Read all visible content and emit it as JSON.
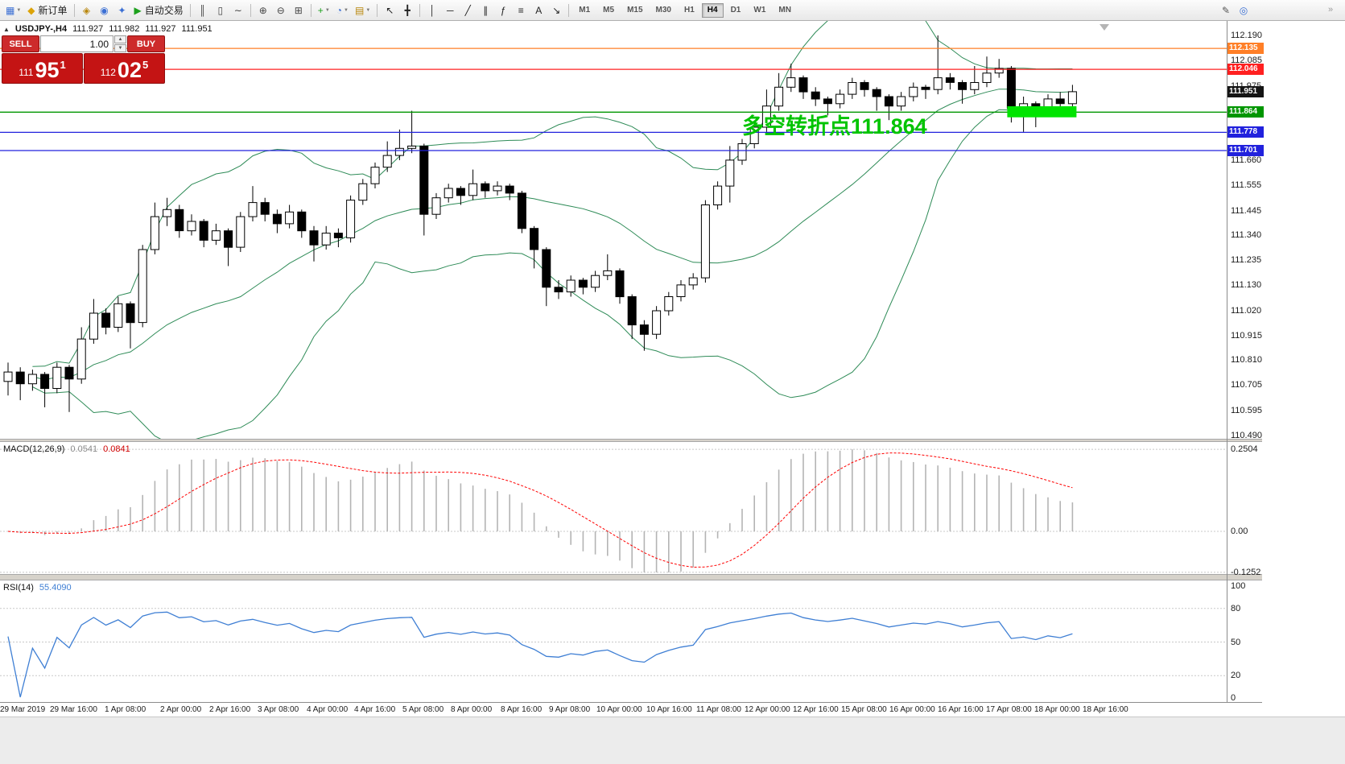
{
  "colors": {
    "band_green": "#2e8b57",
    "macd_bar": "#b4b4b4",
    "macd_signal": "#ff0000",
    "rsi_line": "#3f7fd4",
    "annotation_green": "#00c400",
    "trade_red": "#c41414",
    "current_badge": "#141414"
  },
  "toolbar": {
    "active_timeframe": "H4",
    "items": [
      {
        "type": "icon",
        "name": "new-chart",
        "glyph": "▦",
        "color": "#3b6fd4",
        "dropdown": true
      },
      {
        "type": "labeled",
        "name": "new-order",
        "glyph": "◆",
        "color": "#dca308",
        "label": "新订单"
      },
      {
        "type": "sep"
      },
      {
        "type": "icon",
        "name": "profiles",
        "glyph": "◈",
        "color": "#b8860b"
      },
      {
        "type": "icon",
        "name": "market-watch",
        "glyph": "◉",
        "color": "#3b6fd4"
      },
      {
        "type": "icon",
        "name": "navigator",
        "glyph": "✦",
        "color": "#3b6fd4"
      },
      {
        "type": "labeled",
        "name": "autotrading",
        "glyph": "▶",
        "color": "#1da11d",
        "label": "自动交易"
      },
      {
        "type": "sep"
      },
      {
        "type": "icon",
        "name": "bar-chart-mode",
        "glyph": "║",
        "color": "#444444"
      },
      {
        "type": "icon",
        "name": "candlestick-mode",
        "glyph": "▯",
        "color": "#444444"
      },
      {
        "type": "icon",
        "name": "line-chart-mode",
        "glyph": "∼",
        "color": "#444444"
      },
      {
        "type": "sep"
      },
      {
        "type": "icon",
        "name": "zoom-in",
        "glyph": "⊕",
        "color": "#444444"
      },
      {
        "type": "icon",
        "name": "zoom-out",
        "glyph": "⊖",
        "color": "#444444"
      },
      {
        "type": "icon",
        "name": "tile-windows",
        "glyph": "⊞",
        "color": "#444444"
      },
      {
        "type": "sep"
      },
      {
        "type": "icon",
        "name": "indicators",
        "glyph": "+",
        "color": "#1da11d",
        "dropdown": true
      },
      {
        "type": "icon",
        "name": "periods",
        "glyph": "◔",
        "color": "#3b6fd4",
        "dropdown": true
      },
      {
        "type": "icon",
        "name": "templates",
        "glyph": "▤",
        "color": "#b8860b",
        "dropdown": true
      },
      {
        "type": "sep"
      },
      {
        "type": "icon",
        "name": "cursor",
        "glyph": "↖",
        "color": "#222222"
      },
      {
        "type": "icon",
        "name": "crosshair",
        "glyph": "╋",
        "color": "#222222"
      },
      {
        "type": "sep"
      },
      {
        "type": "icon",
        "name": "vertical-line",
        "glyph": "│",
        "color": "#222222"
      },
      {
        "type": "icon",
        "name": "horizontal-line",
        "glyph": "─",
        "color": "#222222"
      },
      {
        "type": "icon",
        "name": "trendline",
        "glyph": "╱",
        "color": "#222222"
      },
      {
        "type": "icon",
        "name": "equidistant-channel",
        "glyph": "∥",
        "color": "#222222"
      },
      {
        "type": "icon",
        "name": "fibonacci",
        "glyph": "ƒ",
        "color": "#222222"
      },
      {
        "type": "icon",
        "name": "objects-list",
        "glyph": "≡",
        "color": "#222222"
      },
      {
        "type": "icon",
        "name": "text-label",
        "glyph": "A",
        "color": "#222222"
      },
      {
        "type": "icon",
        "name": "arrow-objects",
        "glyph": "↘",
        "color": "#222222"
      },
      {
        "type": "sep"
      },
      {
        "type": "tf",
        "label": "M1"
      },
      {
        "type": "tf",
        "label": "M5"
      },
      {
        "type": "tf",
        "label": "M15"
      },
      {
        "type": "tf",
        "label": "M30"
      },
      {
        "type": "tf",
        "label": "H1"
      },
      {
        "type": "tf",
        "label": "H4"
      },
      {
        "type": "tf",
        "label": "D1"
      },
      {
        "type": "tf",
        "label": "W1"
      },
      {
        "type": "tf",
        "label": "MN"
      }
    ],
    "right_items": [
      {
        "name": "quick-edit",
        "glyph": "✎",
        "color": "#555555"
      },
      {
        "name": "quick-search",
        "glyph": "◎",
        "color": "#3b6fd4"
      }
    ],
    "overflow_glyph": "»"
  },
  "quote_bar": {
    "collapse_glyph": "▲",
    "symbol": "USDJPY-,H4",
    "open": "111.927",
    "high": "111.982",
    "low": "111.927",
    "close": "111.951"
  },
  "trade_panel": {
    "sell_label": "SELL",
    "buy_label": "BUY",
    "volume": "1.00",
    "spin_up": "▲",
    "spin_down": "▼",
    "sell_price": {
      "prefix": "111",
      "big": "95",
      "sup": "1"
    },
    "buy_price": {
      "prefix": "112",
      "big": "02",
      "sup": "5"
    }
  },
  "chart_data": [
    {
      "type": "candlestick",
      "title": "USDJPY-,H4",
      "ylim": [
        110.49,
        112.245
      ],
      "current_price": 111.951,
      "ohlc": [
        [
          110.72,
          110.8,
          110.66,
          110.76
        ],
        [
          110.76,
          110.78,
          110.64,
          110.71
        ],
        [
          110.71,
          110.77,
          110.68,
          110.75
        ],
        [
          110.75,
          110.76,
          110.61,
          110.69
        ],
        [
          110.69,
          110.8,
          110.67,
          110.78
        ],
        [
          110.78,
          110.79,
          110.59,
          110.73
        ],
        [
          110.73,
          110.95,
          110.71,
          110.9
        ],
        [
          110.9,
          111.07,
          110.88,
          111.01
        ],
        [
          111.01,
          111.03,
          110.92,
          110.95
        ],
        [
          110.95,
          111.08,
          110.93,
          111.05
        ],
        [
          111.05,
          111.06,
          110.86,
          110.97
        ],
        [
          110.97,
          111.3,
          110.95,
          111.28
        ],
        [
          111.28,
          111.48,
          111.26,
          111.42
        ],
        [
          111.42,
          111.5,
          111.38,
          111.45
        ],
        [
          111.45,
          111.47,
          111.33,
          111.36
        ],
        [
          111.36,
          111.43,
          111.34,
          111.4
        ],
        [
          111.4,
          111.41,
          111.29,
          111.32
        ],
        [
          111.32,
          111.39,
          111.3,
          111.36
        ],
        [
          111.36,
          111.37,
          111.21,
          111.29
        ],
        [
          111.29,
          111.44,
          111.27,
          111.42
        ],
        [
          111.42,
          111.55,
          111.4,
          111.48
        ],
        [
          111.48,
          111.5,
          111.4,
          111.43
        ],
        [
          111.43,
          111.45,
          111.35,
          111.39
        ],
        [
          111.39,
          111.47,
          111.37,
          111.44
        ],
        [
          111.44,
          111.45,
          111.33,
          111.36
        ],
        [
          111.36,
          111.38,
          111.23,
          111.3
        ],
        [
          111.3,
          111.38,
          111.28,
          111.35
        ],
        [
          111.35,
          111.37,
          111.29,
          111.33
        ],
        [
          111.33,
          111.51,
          111.31,
          111.49
        ],
        [
          111.49,
          111.58,
          111.47,
          111.56
        ],
        [
          111.56,
          111.65,
          111.54,
          111.63
        ],
        [
          111.63,
          111.74,
          111.61,
          111.68
        ],
        [
          111.68,
          111.79,
          111.66,
          111.71
        ],
        [
          111.71,
          111.87,
          111.69,
          111.72
        ],
        [
          111.72,
          111.73,
          111.34,
          111.43
        ],
        [
          111.43,
          111.52,
          111.41,
          111.5
        ],
        [
          111.5,
          111.56,
          111.48,
          111.54
        ],
        [
          111.54,
          111.55,
          111.47,
          111.51
        ],
        [
          111.51,
          111.62,
          111.49,
          111.56
        ],
        [
          111.56,
          111.57,
          111.5,
          111.53
        ],
        [
          111.53,
          111.57,
          111.51,
          111.55
        ],
        [
          111.55,
          111.56,
          111.49,
          111.52
        ],
        [
          111.52,
          111.53,
          111.35,
          111.37
        ],
        [
          111.37,
          111.38,
          111.2,
          111.28
        ],
        [
          111.28,
          111.29,
          111.04,
          111.12
        ],
        [
          111.12,
          111.15,
          111.07,
          111.1
        ],
        [
          111.1,
          111.17,
          111.08,
          111.15
        ],
        [
          111.15,
          111.16,
          111.09,
          111.12
        ],
        [
          111.12,
          111.19,
          111.1,
          111.17
        ],
        [
          111.17,
          111.26,
          111.15,
          111.19
        ],
        [
          111.19,
          111.2,
          111.05,
          111.08
        ],
        [
          111.08,
          111.09,
          110.9,
          110.96
        ],
        [
          110.96,
          110.98,
          110.85,
          110.92
        ],
        [
          110.92,
          111.04,
          110.9,
          111.02
        ],
        [
          111.02,
          111.1,
          111.0,
          111.08
        ],
        [
          111.08,
          111.15,
          111.06,
          111.13
        ],
        [
          111.13,
          111.18,
          111.11,
          111.16
        ],
        [
          111.16,
          111.49,
          111.14,
          111.47
        ],
        [
          111.47,
          111.57,
          111.45,
          111.55
        ],
        [
          111.55,
          111.72,
          111.48,
          111.66
        ],
        [
          111.66,
          111.75,
          111.64,
          111.73
        ],
        [
          111.73,
          111.82,
          111.71,
          111.8
        ],
        [
          111.8,
          111.96,
          111.78,
          111.89
        ],
        [
          111.89,
          112.03,
          111.87,
          111.97
        ],
        [
          111.97,
          112.07,
          111.95,
          112.01
        ],
        [
          112.01,
          112.02,
          111.92,
          111.95
        ],
        [
          111.95,
          111.97,
          111.89,
          111.92
        ],
        [
          111.92,
          111.93,
          111.85,
          111.9
        ],
        [
          111.9,
          111.96,
          111.88,
          111.94
        ],
        [
          111.94,
          112.01,
          111.92,
          111.99
        ],
        [
          111.99,
          112.0,
          111.93,
          111.96
        ],
        [
          111.96,
          111.97,
          111.87,
          111.93
        ],
        [
          111.93,
          111.94,
          111.83,
          111.89
        ],
        [
          111.89,
          111.95,
          111.87,
          111.93
        ],
        [
          111.93,
          111.99,
          111.91,
          111.97
        ],
        [
          111.97,
          111.98,
          111.92,
          111.96
        ],
        [
          111.96,
          112.19,
          111.94,
          112.01
        ],
        [
          112.01,
          112.03,
          111.96,
          111.99
        ],
        [
          111.99,
          112.0,
          111.9,
          111.96
        ],
        [
          111.96,
          112.06,
          111.94,
          111.99
        ],
        [
          111.99,
          112.1,
          111.97,
          112.03
        ],
        [
          112.03,
          112.09,
          112.01,
          112.05
        ],
        [
          112.05,
          112.06,
          111.82,
          111.88
        ],
        [
          111.88,
          111.93,
          111.78,
          111.9
        ],
        [
          111.9,
          111.91,
          111.8,
          111.87
        ],
        [
          111.87,
          111.94,
          111.85,
          111.92
        ],
        [
          111.92,
          111.95,
          111.88,
          111.9
        ],
        [
          111.9,
          111.98,
          111.87,
          111.951
        ]
      ],
      "bollinger": {
        "period": 20,
        "deviation": 2
      },
      "hlines": [
        {
          "price": 112.135,
          "color": "#ff7f27"
        },
        {
          "price": 112.046,
          "color": "#ff2020"
        },
        {
          "price": 111.864,
          "color": "#009600"
        },
        {
          "price": 111.778,
          "color": "#2121dd"
        },
        {
          "price": 111.701,
          "color": "#2121dd"
        }
      ],
      "rectangle": {
        "from_bar": 82,
        "to_bar": 87,
        "price_top": 111.889,
        "price_bottom": 111.842,
        "color": "#00e400"
      },
      "annotation": {
        "text": "多空转折点111.864",
        "color": "#00c400",
        "bar": 60,
        "price": 111.773
      },
      "scale_labels": [
        112.19,
        112.085,
        111.975,
        111.87,
        111.765,
        111.66,
        111.555,
        111.445,
        111.34,
        111.235,
        111.13,
        111.02,
        110.915,
        110.81,
        110.705,
        110.595,
        110.49
      ],
      "scale_badges": [
        {
          "value": "112.135",
          "color": "#ff7f27"
        },
        {
          "value": "112.046",
          "color": "#ff2020"
        },
        {
          "value": "111.951",
          "color": "#141414"
        },
        {
          "value": "111.864",
          "color": "#009600"
        },
        {
          "value": "111.778",
          "color": "#2121dd"
        },
        {
          "value": "111.701",
          "color": "#2121dd"
        }
      ],
      "x_labels": [
        "29 Mar 2019",
        "29 Mar 16:00",
        "1 Apr 08:00",
        "2 Apr 00:00",
        "2 Apr 16:00",
        "3 Apr 08:00",
        "4 Apr 00:00",
        "4 Apr 16:00",
        "5 Apr 08:00",
        "8 Apr 00:00",
        "8 Apr 16:00",
        "9 Apr 08:00",
        "10 Apr 00:00",
        "10 Apr 16:00",
        "11 Apr 08:00",
        "12 Apr 00:00",
        "12 Apr 16:00",
        "15 Apr 08:00",
        "16 Apr 00:00",
        "16 Apr 16:00",
        "17 Apr 08:00",
        "18 Apr 00:00",
        "18 Apr 16:00"
      ],
      "x_label_pos": [
        0,
        62,
        130,
        199,
        260,
        320,
        381,
        440,
        500,
        560,
        622,
        682,
        741,
        803,
        865,
        925,
        985,
        1045,
        1105,
        1165,
        1225,
        1285,
        1345
      ]
    },
    {
      "type": "bar",
      "name": "MACD",
      "label": "MACD(12,26,9)",
      "value_main": "0.0541",
      "value_signal": "0.0841",
      "params": {
        "fast": 12,
        "slow": 26,
        "signal": 9
      },
      "derived_from": "ohlc closes",
      "scale_labels": [
        "0.2504",
        "0.00",
        "-0.1252"
      ],
      "ylim": [
        -0.1252,
        0.2504
      ]
    },
    {
      "type": "line",
      "name": "RSI",
      "label": "RSI(14)",
      "value": "55.4090",
      "params": {
        "period": 14
      },
      "derived_from": "ohlc closes",
      "scale_labels": [
        "100",
        "80",
        "50",
        "20",
        "0"
      ],
      "ylim": [
        0,
        100
      ],
      "levels": [
        80,
        50,
        20
      ]
    }
  ]
}
